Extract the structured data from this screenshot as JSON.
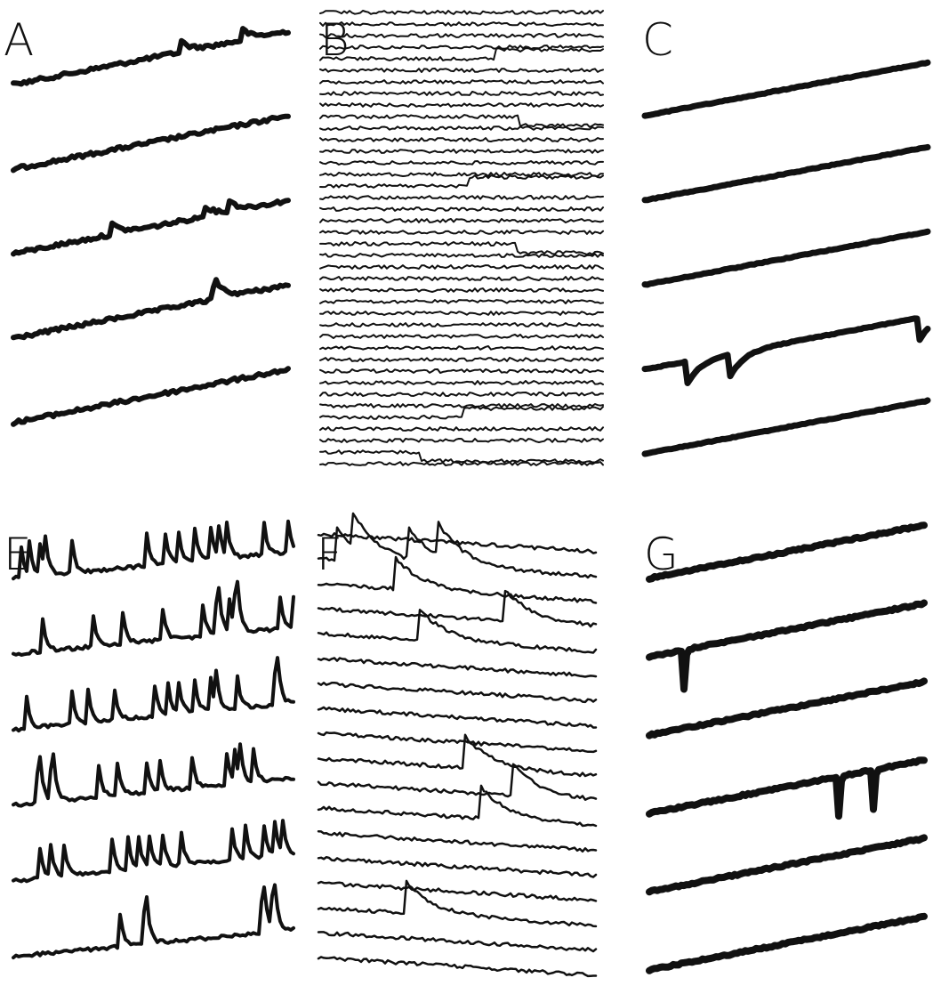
{
  "panels": [
    {
      "label": "A"
    },
    {
      "label": "B"
    },
    {
      "label": "C"
    },
    {
      "label": "E"
    },
    {
      "label": "F"
    },
    {
      "label": "G"
    }
  ]
}
